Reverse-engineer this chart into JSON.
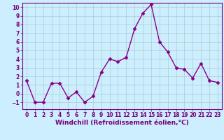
{
  "x": [
    0,
    1,
    2,
    3,
    4,
    5,
    6,
    7,
    8,
    9,
    10,
    11,
    12,
    13,
    14,
    15,
    16,
    17,
    18,
    19,
    20,
    21,
    22,
    23
  ],
  "y": [
    1.5,
    -1.0,
    -1.0,
    1.2,
    1.2,
    -0.5,
    0.2,
    -1.0,
    -0.3,
    2.5,
    4.0,
    3.7,
    4.2,
    7.5,
    9.3,
    10.3,
    6.0,
    4.8,
    3.0,
    2.8,
    1.8,
    3.5,
    1.5,
    1.3
  ],
  "line_color": "#880088",
  "marker": "D",
  "marker_size": 2.5,
  "bg_color": "#cceeff",
  "grid_color": "#aacccc",
  "xlabel": "Windchill (Refroidissement éolien,°C)",
  "ylim": [
    -1.8,
    10.5
  ],
  "xlim": [
    -0.5,
    23.5
  ],
  "yticks": [
    -1,
    0,
    1,
    2,
    3,
    4,
    5,
    6,
    7,
    8,
    9,
    10
  ],
  "xticks": [
    0,
    1,
    2,
    3,
    4,
    5,
    6,
    7,
    8,
    9,
    10,
    11,
    12,
    13,
    14,
    15,
    16,
    17,
    18,
    19,
    20,
    21,
    22,
    23
  ],
  "tick_fontsize": 5.5,
  "xlabel_fontsize": 6.5,
  "label_color": "#770077",
  "spine_color": "#770077",
  "line_width": 1.0
}
